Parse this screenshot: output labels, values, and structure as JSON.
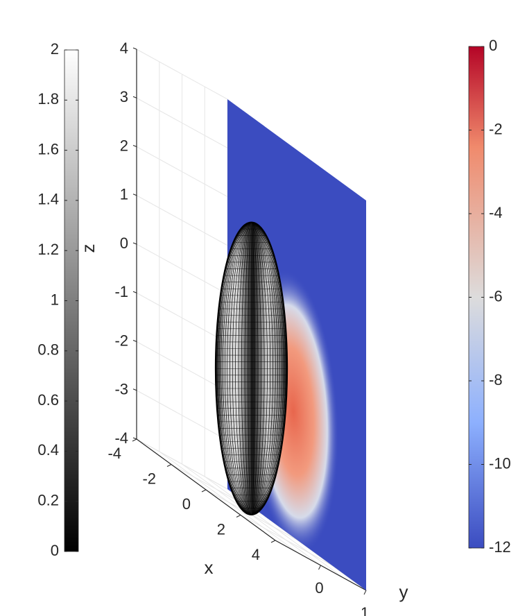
{
  "chart_data": {
    "type": "surface3d",
    "axes": {
      "x": {
        "label": "x",
        "range": [
          -4,
          4
        ],
        "ticks": [
          "-4",
          "-2",
          "0",
          "2",
          "4"
        ]
      },
      "y": {
        "label": "y",
        "range": [
          -1,
          1
        ],
        "ticks": [
          "0",
          "1"
        ]
      },
      "z": {
        "label": "z",
        "range": [
          -4,
          4
        ],
        "ticks": [
          "4",
          "3",
          "2",
          "1",
          "0",
          "-1",
          "-2",
          "-3",
          "-4"
        ]
      },
      "grid": true
    },
    "surface": {
      "shape": "ellipsoid",
      "center": [
        0,
        0,
        -1
      ],
      "semi_axes": [
        1,
        1,
        3
      ],
      "colormap": "gray",
      "edgecolor": "black"
    },
    "slice": {
      "plane": "y = 1",
      "x_range": [
        -4,
        4
      ],
      "z_range": [
        -4,
        4
      ],
      "colormap": "coolwarm",
      "background_value": -12
    },
    "colorbars": [
      {
        "name": "gray",
        "position": "left",
        "range": [
          0,
          2
        ],
        "ticks": [
          "2",
          "1.8",
          "1.6",
          "1.4",
          "1.2",
          "1",
          "0.8",
          "0.6",
          "0.4",
          "0.2",
          "0"
        ],
        "colors": [
          "#ffffff",
          "#000000"
        ]
      },
      {
        "name": "coolwarm",
        "position": "right",
        "range": [
          -12,
          0
        ],
        "ticks": [
          "0",
          "-2",
          "-4",
          "-6",
          "-8",
          "-10",
          "-12"
        ],
        "colors": [
          "#b40426",
          "#f08a6c",
          "#dddcdc",
          "#8db0fe",
          "#3b4cc0"
        ]
      }
    ]
  }
}
